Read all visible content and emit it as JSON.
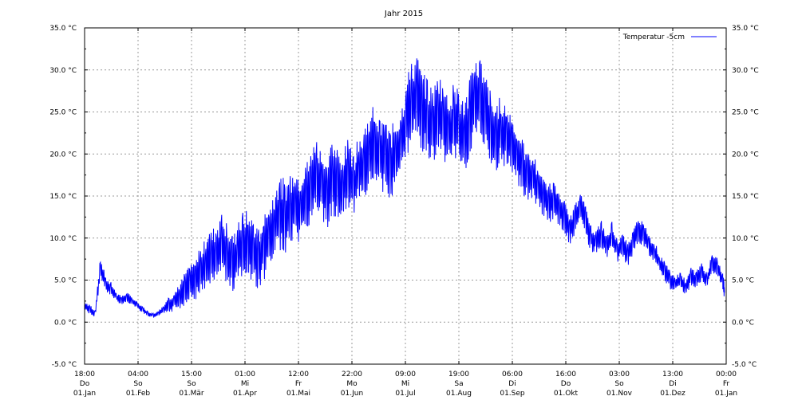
{
  "chart_data": {
    "type": "line",
    "title": "Jahr 2015",
    "ylabel": "",
    "xlabel": "",
    "ylim": [
      -5,
      35
    ],
    "y_ticks": [
      -5,
      0,
      5,
      10,
      15,
      20,
      25,
      30,
      35
    ],
    "y_tick_labels": [
      "-5.0 °C",
      "0.0 °C",
      "5.0 °C",
      "10.0 °C",
      "15.0 °C",
      "20.0 °C",
      "25.0 °C",
      "30.0 °C",
      "35.0 °C"
    ],
    "grid": true,
    "legend": "top-right",
    "x_range": [
      "2015-01-01",
      "2016-01-01"
    ],
    "x_ticks": [
      {
        "time": "18:00",
        "day": "Do",
        "date": "01.Jan"
      },
      {
        "time": "04:00",
        "day": "So",
        "date": "01.Feb"
      },
      {
        "time": "15:00",
        "day": "So",
        "date": "01.Mär"
      },
      {
        "time": "01:00",
        "day": "Mi",
        "date": "01.Apr"
      },
      {
        "time": "12:00",
        "day": "Fr",
        "date": "01.Mai"
      },
      {
        "time": "22:00",
        "day": "Mo",
        "date": "01.Jun"
      },
      {
        "time": "09:00",
        "day": "Mi",
        "date": "01.Jul"
      },
      {
        "time": "19:00",
        "day": "Sa",
        "date": "01.Aug"
      },
      {
        "time": "06:00",
        "day": "Di",
        "date": "01.Sep"
      },
      {
        "time": "16:00",
        "day": "Do",
        "date": "01.Okt"
      },
      {
        "time": "03:00",
        "day": "So",
        "date": "01.Nov"
      },
      {
        "time": "13:00",
        "day": "Di",
        "date": "01.Dez"
      },
      {
        "time": "00:00",
        "day": "Fr",
        "date": "01.Jan"
      }
    ],
    "series": [
      {
        "name": "Temperatur -5cm",
        "color": "#0000ff",
        "x": [
          "2015-01-01",
          "2015-01-04",
          "2015-01-07",
          "2015-01-10",
          "2015-01-13",
          "2015-01-16",
          "2015-01-19",
          "2015-01-22",
          "2015-01-25",
          "2015-01-28",
          "2015-01-31",
          "2015-02-03",
          "2015-02-06",
          "2015-02-09",
          "2015-02-12",
          "2015-02-15",
          "2015-02-18",
          "2015-02-21",
          "2015-02-24",
          "2015-02-27",
          "2015-03-02",
          "2015-03-05",
          "2015-03-08",
          "2015-03-11",
          "2015-03-14",
          "2015-03-17",
          "2015-03-20",
          "2015-03-23",
          "2015-03-26",
          "2015-03-29",
          "2015-04-01",
          "2015-04-04",
          "2015-04-07",
          "2015-04-10",
          "2015-04-13",
          "2015-04-16",
          "2015-04-19",
          "2015-04-22",
          "2015-04-25",
          "2015-04-28",
          "2015-05-01",
          "2015-05-04",
          "2015-05-07",
          "2015-05-10",
          "2015-05-13",
          "2015-05-16",
          "2015-05-19",
          "2015-05-22",
          "2015-05-25",
          "2015-05-28",
          "2015-05-31",
          "2015-06-03",
          "2015-06-06",
          "2015-06-09",
          "2015-06-12",
          "2015-06-15",
          "2015-06-18",
          "2015-06-21",
          "2015-06-24",
          "2015-06-27",
          "2015-06-30",
          "2015-07-03",
          "2015-07-06",
          "2015-07-09",
          "2015-07-12",
          "2015-07-15",
          "2015-07-18",
          "2015-07-21",
          "2015-07-24",
          "2015-07-27",
          "2015-07-30",
          "2015-08-02",
          "2015-08-05",
          "2015-08-08",
          "2015-08-11",
          "2015-08-14",
          "2015-08-17",
          "2015-08-20",
          "2015-08-23",
          "2015-08-26",
          "2015-08-29",
          "2015-09-01",
          "2015-09-04",
          "2015-09-07",
          "2015-09-10",
          "2015-09-13",
          "2015-09-16",
          "2015-09-19",
          "2015-09-22",
          "2015-09-25",
          "2015-09-28",
          "2015-10-01",
          "2015-10-04",
          "2015-10-07",
          "2015-10-10",
          "2015-10-13",
          "2015-10-16",
          "2015-10-19",
          "2015-10-22",
          "2015-10-25",
          "2015-10-28",
          "2015-10-31",
          "2015-11-03",
          "2015-11-06",
          "2015-11-09",
          "2015-11-12",
          "2015-11-15",
          "2015-11-18",
          "2015-11-21",
          "2015-11-24",
          "2015-11-27",
          "2015-11-30",
          "2015-12-03",
          "2015-12-06",
          "2015-12-09",
          "2015-12-12",
          "2015-12-15",
          "2015-12-18",
          "2015-12-21",
          "2015-12-24",
          "2015-12-27",
          "2015-12-30",
          "2015-12-31"
        ],
        "y": [
          2.0,
          1.5,
          1.0,
          6.5,
          4.5,
          4.0,
          3.0,
          2.5,
          3.0,
          2.5,
          2.0,
          1.5,
          1.0,
          0.8,
          1.0,
          1.5,
          2.0,
          2.5,
          3.0,
          4.0,
          4.5,
          5.0,
          6.0,
          6.5,
          7.5,
          8.0,
          9.0,
          8.0,
          7.0,
          8.0,
          9.5,
          9.0,
          8.5,
          7.5,
          9.0,
          10.0,
          11.5,
          13.0,
          12.5,
          13.0,
          14.0,
          13.5,
          14.5,
          16.0,
          17.5,
          16.0,
          15.0,
          17.0,
          16.5,
          16.0,
          17.5,
          16.0,
          18.0,
          19.0,
          20.5,
          21.5,
          19.5,
          20.0,
          18.5,
          20.0,
          21.0,
          24.0,
          26.0,
          27.0,
          25.0,
          24.0,
          23.0,
          25.0,
          24.0,
          22.5,
          24.0,
          23.0,
          21.5,
          24.0,
          26.0,
          27.0,
          25.0,
          23.0,
          22.0,
          23.0,
          22.0,
          21.0,
          20.0,
          18.5,
          17.0,
          17.5,
          16.0,
          15.0,
          14.0,
          14.5,
          13.5,
          12.5,
          11.0,
          12.0,
          13.5,
          12.0,
          10.0,
          9.5,
          10.5,
          9.0,
          10.5,
          8.5,
          9.0,
          8.0,
          9.5,
          11.0,
          10.5,
          9.0,
          8.5,
          7.0,
          6.0,
          5.0,
          4.5,
          5.0,
          4.0,
          5.5,
          5.0,
          6.0,
          5.0,
          7.0,
          6.5,
          5.0,
          3.5
        ],
        "daily_range": [
          0.6,
          0.6,
          0.5,
          1.2,
          1.0,
          0.8,
          0.6,
          0.6,
          0.6,
          0.5,
          0.4,
          0.4,
          0.3,
          0.3,
          0.4,
          0.6,
          1.0,
          1.2,
          1.5,
          2.0,
          2.2,
          2.5,
          3.0,
          3.5,
          3.5,
          3.8,
          4.0,
          4.0,
          3.5,
          3.5,
          4.0,
          4.2,
          4.0,
          3.8,
          4.0,
          4.2,
          4.5,
          4.5,
          4.5,
          4.5,
          4.5,
          4.2,
          4.5,
          4.5,
          4.5,
          4.5,
          4.5,
          4.5,
          4.5,
          4.2,
          4.5,
          4.0,
          4.2,
          4.5,
          4.5,
          4.5,
          4.5,
          4.2,
          4.5,
          4.5,
          4.5,
          5.0,
          5.0,
          5.0,
          5.0,
          4.8,
          4.8,
          4.8,
          4.8,
          4.6,
          4.5,
          4.5,
          4.5,
          5.0,
          5.0,
          5.0,
          4.8,
          4.5,
          4.2,
          4.0,
          4.0,
          3.8,
          3.5,
          3.2,
          3.0,
          2.8,
          2.5,
          2.5,
          2.5,
          2.2,
          2.2,
          2.0,
          1.8,
          2.0,
          2.0,
          1.8,
          1.6,
          1.5,
          1.6,
          1.5,
          1.5,
          1.4,
          1.5,
          1.4,
          1.5,
          1.6,
          1.5,
          1.4,
          1.3,
          1.2,
          1.2,
          1.1,
          1.0,
          1.0,
          1.0,
          1.1,
          1.1,
          1.1,
          1.0,
          1.1,
          1.1,
          1.0,
          1.0
        ]
      }
    ]
  }
}
